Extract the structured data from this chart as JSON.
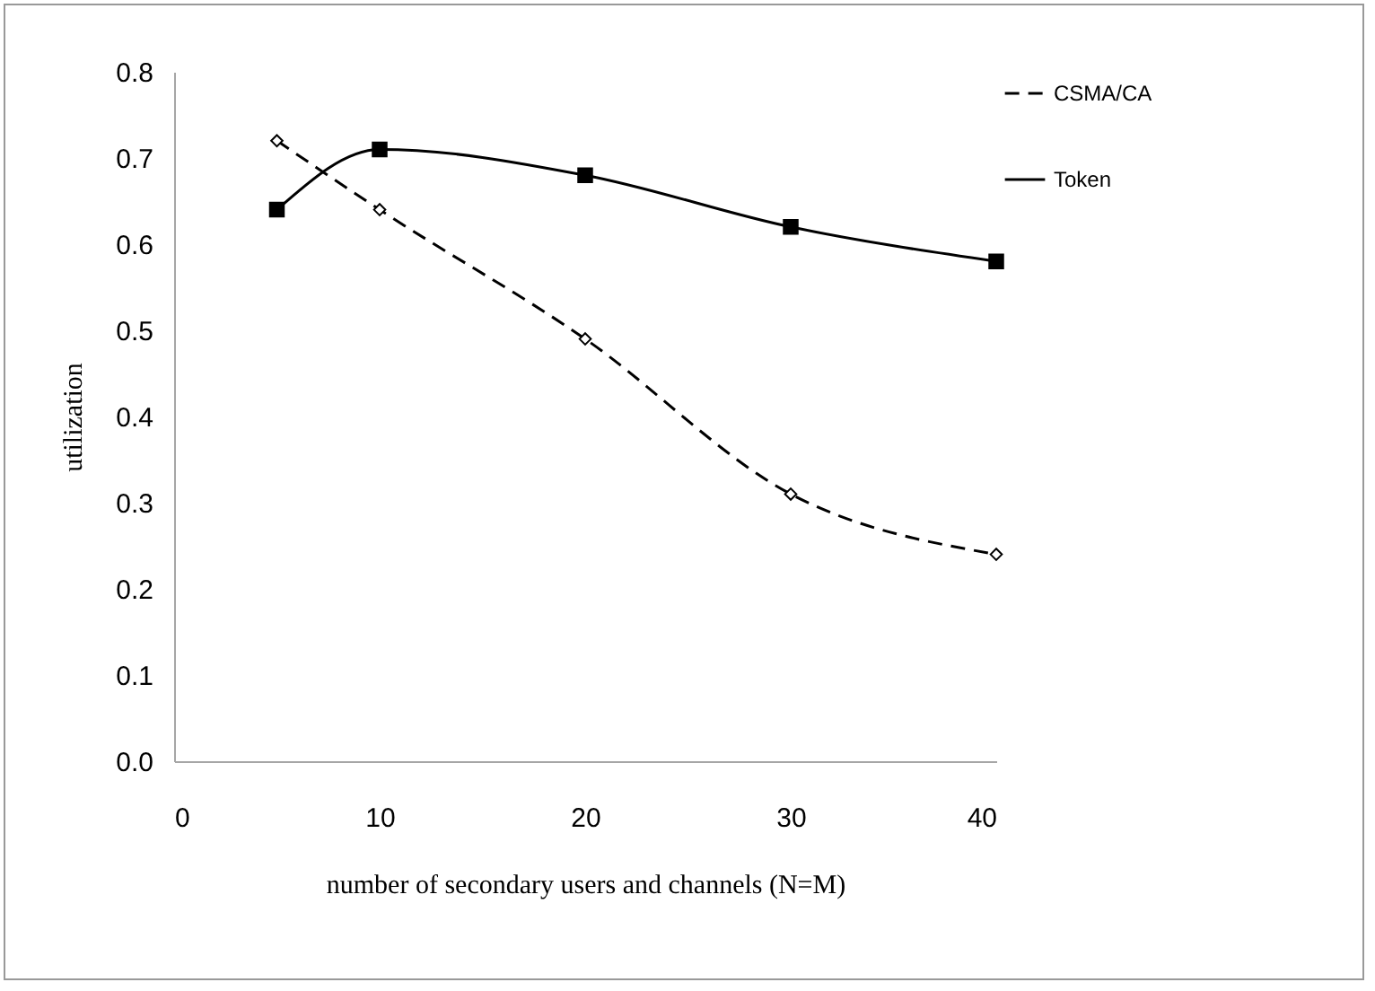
{
  "chart_data": {
    "type": "line",
    "xlabel": "number of secondary users and channels (N=M)",
    "ylabel": "utilization",
    "x": [
      5,
      10,
      20,
      30,
      40
    ],
    "xlim": [
      0,
      40
    ],
    "xticks": [
      0,
      10,
      20,
      30,
      40
    ],
    "ylim": [
      0,
      0.8
    ],
    "yticks": [
      {
        "value": 0,
        "label": "0.0"
      },
      0.1,
      0.2,
      0.3,
      0.4,
      0.5,
      0.6,
      0.7,
      0.8
    ],
    "grid": false,
    "legend": "right",
    "series": [
      {
        "name": "CSMA/CA",
        "color": "#000000",
        "values": [
          0.72,
          0.64,
          0.49,
          0.31,
          0.24
        ],
        "marker": "diamond",
        "line_style": "dashed"
      },
      {
        "name": "Token",
        "color": "#000000",
        "values": [
          0.64,
          0.71,
          0.68,
          0.62,
          0.58
        ],
        "marker": "square",
        "line_style": "solid"
      }
    ]
  }
}
